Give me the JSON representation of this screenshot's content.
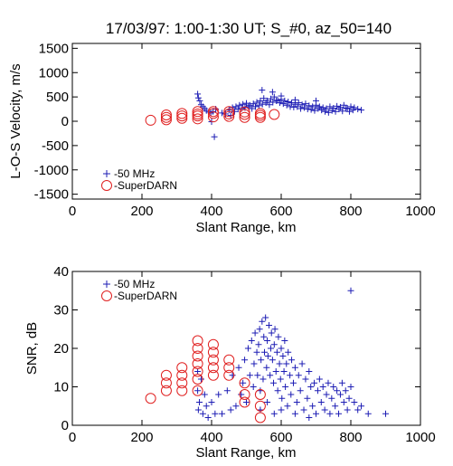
{
  "figure_title": "17/03/97: 1:00-1:30 UT; S_#0, az_50=140",
  "colors": {
    "mhz50": "#1c1cb4",
    "superdarn": "#e02020"
  },
  "chart_data": [
    {
      "type": "scatter",
      "id": "velocity",
      "title": "17/03/97: 1:00-1:30 UT; S_#0, az_50=140",
      "xlabel": "Slant Range, km",
      "ylabel": "L-O-S Velocity, m/s",
      "xlim": [
        0,
        1000
      ],
      "ylim": [
        -1600,
        1600
      ],
      "xticks": [
        0,
        200,
        400,
        600,
        800,
        1000
      ],
      "yticks": [
        -1500,
        -1000,
        -500,
        0,
        500,
        1000,
        1500
      ],
      "grid": false,
      "legend_position": "bottom-left",
      "series": [
        {
          "name": "-50 MHz",
          "marker": "plus",
          "color": "#1c1cb4",
          "points": [
            [
              360,
              560
            ],
            [
              362,
              480
            ],
            [
              366,
              420
            ],
            [
              370,
              340
            ],
            [
              375,
              300
            ],
            [
              380,
              260
            ],
            [
              385,
              220
            ],
            [
              392,
              190
            ],
            [
              398,
              170
            ],
            [
              400,
              -10
            ],
            [
              404,
              200
            ],
            [
              408,
              -320
            ],
            [
              412,
              250
            ],
            [
              430,
              170
            ],
            [
              440,
              150
            ],
            [
              450,
              230
            ],
            [
              455,
              120
            ],
            [
              460,
              280
            ],
            [
              466,
              200
            ],
            [
              470,
              300
            ],
            [
              476,
              250
            ],
            [
              480,
              330
            ],
            [
              486,
              260
            ],
            [
              490,
              350
            ],
            [
              496,
              280
            ],
            [
              500,
              370
            ],
            [
              506,
              300
            ],
            [
              510,
              330
            ],
            [
              516,
              260
            ],
            [
              520,
              360
            ],
            [
              526,
              300
            ],
            [
              530,
              390
            ],
            [
              536,
              320
            ],
            [
              540,
              420
            ],
            [
              546,
              350
            ],
            [
              550,
              470
            ],
            [
              556,
              380
            ],
            [
              560,
              420
            ],
            [
              566,
              340
            ],
            [
              570,
              460
            ],
            [
              576,
              390
            ],
            [
              580,
              500
            ],
            [
              586,
              420
            ],
            [
              590,
              430
            ],
            [
              596,
              380
            ],
            [
              600,
              450
            ],
            [
              606,
              360
            ],
            [
              610,
              420
            ],
            [
              616,
              330
            ],
            [
              620,
              400
            ],
            [
              626,
              300
            ],
            [
              630,
              380
            ],
            [
              636,
              290
            ],
            [
              640,
              350
            ],
            [
              646,
              300
            ],
            [
              650,
              380
            ],
            [
              656,
              260
            ],
            [
              660,
              340
            ],
            [
              666,
              280
            ],
            [
              670,
              360
            ],
            [
              676,
              250
            ],
            [
              680,
              320
            ],
            [
              686,
              240
            ],
            [
              690,
              300
            ],
            [
              696,
              220
            ],
            [
              700,
              330
            ],
            [
              706,
              260
            ],
            [
              710,
              300
            ],
            [
              716,
              230
            ],
            [
              720,
              280
            ],
            [
              726,
              200
            ],
            [
              730,
              260
            ],
            [
              736,
              180
            ],
            [
              740,
              300
            ],
            [
              746,
              220
            ],
            [
              750,
              270
            ],
            [
              756,
              200
            ],
            [
              760,
              310
            ],
            [
              766,
              250
            ],
            [
              770,
              290
            ],
            [
              776,
              210
            ],
            [
              780,
              330
            ],
            [
              786,
              260
            ],
            [
              790,
              270
            ],
            [
              796,
              200
            ],
            [
              800,
              300
            ],
            [
              806,
              230
            ],
            [
              810,
              280
            ],
            [
              820,
              250
            ],
            [
              830,
              230
            ],
            [
              545,
              640
            ],
            [
              575,
              600
            ],
            [
              600,
              520
            ],
            [
              640,
              440
            ],
            [
              700,
              420
            ]
          ]
        },
        {
          "name": "-SuperDARN",
          "marker": "circle",
          "color": "#e02020",
          "points": [
            [
              225,
              20
            ],
            [
              270,
              30
            ],
            [
              270,
              80
            ],
            [
              270,
              130
            ],
            [
              315,
              60
            ],
            [
              315,
              110
            ],
            [
              315,
              160
            ],
            [
              360,
              50
            ],
            [
              360,
              110
            ],
            [
              360,
              150
            ],
            [
              360,
              200
            ],
            [
              405,
              90
            ],
            [
              405,
              160
            ],
            [
              405,
              200
            ],
            [
              450,
              100
            ],
            [
              450,
              150
            ],
            [
              450,
              200
            ],
            [
              495,
              80
            ],
            [
              495,
              140
            ],
            [
              495,
              190
            ],
            [
              540,
              80
            ],
            [
              540,
              120
            ],
            [
              540,
              160
            ],
            [
              580,
              140
            ]
          ]
        }
      ]
    },
    {
      "type": "scatter",
      "id": "snr",
      "title": "",
      "xlabel": "Slant Range, km",
      "ylabel": "SNR, dB",
      "xlim": [
        0,
        1000
      ],
      "ylim": [
        0,
        40
      ],
      "xticks": [
        0,
        200,
        400,
        600,
        800,
        1000
      ],
      "yticks": [
        0,
        10,
        20,
        30,
        40
      ],
      "grid": false,
      "legend_position": "top-left",
      "series": [
        {
          "name": "-50 MHz",
          "marker": "plus",
          "color": "#1c1cb4",
          "points": [
            [
              360,
              14
            ],
            [
              360,
              9
            ],
            [
              362,
              4
            ],
            [
              365,
              6
            ],
            [
              370,
              12
            ],
            [
              375,
              3
            ],
            [
              380,
              8
            ],
            [
              385,
              5
            ],
            [
              390,
              2
            ],
            [
              400,
              6
            ],
            [
              410,
              3
            ],
            [
              420,
              8
            ],
            [
              430,
              3
            ],
            [
              445,
              9
            ],
            [
              455,
              4
            ],
            [
              460,
              13
            ],
            [
              470,
              5
            ],
            [
              478,
              15
            ],
            [
              485,
              8
            ],
            [
              490,
              11
            ],
            [
              495,
              17
            ],
            [
              500,
              6
            ],
            [
              505,
              20
            ],
            [
              510,
              13
            ],
            [
              515,
              22
            ],
            [
              520,
              10
            ],
            [
              522,
              16
            ],
            [
              525,
              24
            ],
            [
              530,
              19
            ],
            [
              532,
              13
            ],
            [
              535,
              21
            ],
            [
              538,
              25
            ],
            [
              540,
              9
            ],
            [
              542,
              17
            ],
            [
              545,
              27
            ],
            [
              548,
              12
            ],
            [
              550,
              23
            ],
            [
              552,
              19
            ],
            [
              555,
              28
            ],
            [
              558,
              15
            ],
            [
              560,
              22
            ],
            [
              562,
              18
            ],
            [
              565,
              26
            ],
            [
              568,
              13
            ],
            [
              570,
              20
            ],
            [
              572,
              24
            ],
            [
              575,
              17
            ],
            [
              578,
              11
            ],
            [
              580,
              21
            ],
            [
              582,
              25
            ],
            [
              585,
              14
            ],
            [
              588,
              19
            ],
            [
              590,
              9
            ],
            [
              592,
              23
            ],
            [
              595,
              16
            ],
            [
              598,
              12
            ],
            [
              600,
              20
            ],
            [
              602,
              7
            ],
            [
              605,
              18
            ],
            [
              608,
              14
            ],
            [
              610,
              22
            ],
            [
              612,
              10
            ],
            [
              615,
              16
            ],
            [
              618,
              5
            ],
            [
              620,
              19
            ],
            [
              625,
              13
            ],
            [
              628,
              8
            ],
            [
              630,
              17
            ],
            [
              635,
              11
            ],
            [
              640,
              15
            ],
            [
              645,
              6
            ],
            [
              650,
              13
            ],
            [
              655,
              9
            ],
            [
              660,
              16
            ],
            [
              665,
              4
            ],
            [
              670,
              12
            ],
            [
              675,
              7
            ],
            [
              680,
              14
            ],
            [
              685,
              10
            ],
            [
              690,
              5
            ],
            [
              695,
              11
            ],
            [
              700,
              3
            ],
            [
              705,
              9
            ],
            [
              710,
              12
            ],
            [
              715,
              6
            ],
            [
              720,
              10
            ],
            [
              725,
              4
            ],
            [
              730,
              8
            ],
            [
              735,
              11
            ],
            [
              740,
              3
            ],
            [
              745,
              7
            ],
            [
              750,
              10
            ],
            [
              755,
              5
            ],
            [
              760,
              9
            ],
            [
              765,
              3
            ],
            [
              770,
              8
            ],
            [
              775,
              11
            ],
            [
              780,
              6
            ],
            [
              785,
              9
            ],
            [
              790,
              4
            ],
            [
              795,
              7
            ],
            [
              800,
              10
            ],
            [
              810,
              6
            ],
            [
              820,
              4
            ],
            [
              830,
              5
            ],
            [
              850,
              3
            ],
            [
              800,
              35
            ],
            [
              900,
              3
            ],
            [
              540,
              4
            ],
            [
              560,
              6
            ],
            [
              580,
              3
            ],
            [
              600,
              4
            ],
            [
              640,
              3
            ],
            [
              680,
              2
            ]
          ]
        },
        {
          "name": "-SuperDARN",
          "marker": "circle",
          "color": "#e02020",
          "points": [
            [
              225,
              7
            ],
            [
              270,
              9
            ],
            [
              270,
              11
            ],
            [
              270,
              13
            ],
            [
              315,
              9
            ],
            [
              315,
              11
            ],
            [
              315,
              13
            ],
            [
              315,
              15
            ],
            [
              360,
              9
            ],
            [
              360,
              12
            ],
            [
              360,
              14
            ],
            [
              360,
              16
            ],
            [
              360,
              18
            ],
            [
              360,
              20
            ],
            [
              360,
              22
            ],
            [
              405,
              13
            ],
            [
              405,
              15
            ],
            [
              405,
              17
            ],
            [
              405,
              19
            ],
            [
              405,
              21
            ],
            [
              450,
              13
            ],
            [
              450,
              15
            ],
            [
              450,
              17
            ],
            [
              495,
              6
            ],
            [
              495,
              8
            ],
            [
              495,
              11
            ],
            [
              540,
              2
            ],
            [
              540,
              5
            ],
            [
              540,
              8
            ]
          ]
        }
      ]
    }
  ]
}
